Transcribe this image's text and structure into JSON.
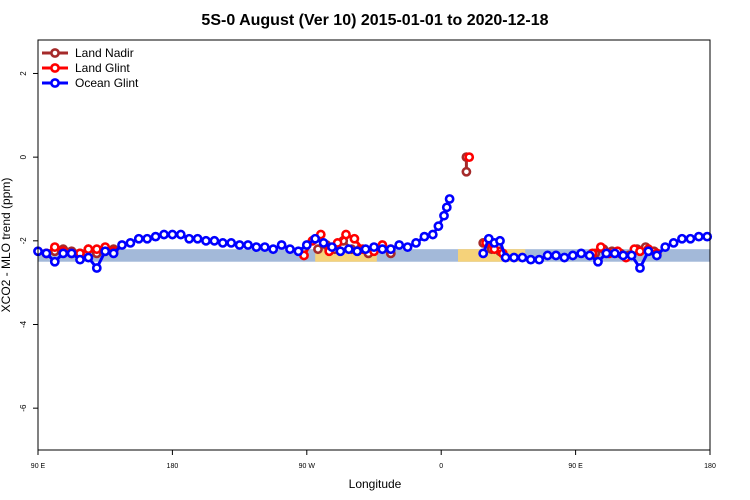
{
  "chart_data": {
    "type": "line",
    "title": "5S-0 August (Ver 10)   2015-01-01 to 2020-12-18",
    "xlabel": "Longitude",
    "ylabel": "XCO2 - MLO trend (ppm)",
    "xlim": [
      60,
      300
    ],
    "ylim": [
      -7,
      2.8
    ],
    "x_ticks": [
      {
        "value": 60,
        "label": "90 E"
      },
      {
        "value": 108,
        "label": "180"
      },
      {
        "value": 156,
        "label": "90 W"
      },
      {
        "value": 204,
        "label": "0"
      },
      {
        "value": 252,
        "label": "90 E"
      },
      {
        "value": 300,
        "label": "180"
      }
    ],
    "y_ticks": [
      {
        "value": 2,
        "label": "2"
      },
      {
        "value": 0,
        "label": "0"
      },
      {
        "value": -2,
        "label": "-2"
      },
      {
        "value": -4,
        "label": "-4"
      },
      {
        "value": -6,
        "label": "-6"
      }
    ],
    "grid": false,
    "legend_position": "top-left",
    "bands": [
      {
        "name": "ocean",
        "color": "#a3b9d9",
        "y": [
          -2.5,
          -2.2
        ],
        "x": [
          60,
          300
        ]
      },
      {
        "name": "land",
        "color": "#f5d27a",
        "y": [
          -2.5,
          -2.2
        ],
        "x": [
          159,
          181
        ]
      },
      {
        "name": "land",
        "color": "#f5d27a",
        "y": [
          -2.5,
          -2.2
        ],
        "x": [
          210,
          234
        ]
      }
    ],
    "series": [
      {
        "name": "Land Nadir",
        "color": "#a52a2a",
        "segments": [
          [
            [
              63,
              -2.3
            ],
            [
              66,
              -2.25
            ],
            [
              69,
              -2.2
            ],
            [
              72,
              -2.25
            ],
            [
              75,
              -2.3
            ]
          ],
          [
            [
              78,
              -2.2
            ],
            [
              81,
              -2.3
            ],
            [
              84,
              -2.25
            ],
            [
              87,
              -2.2
            ]
          ],
          [
            [
              160,
              -2.2
            ],
            [
              163,
              -2.1
            ],
            [
              166,
              -2.2
            ],
            [
              169,
              -2.0
            ],
            [
              172,
              -2.2
            ],
            [
              175,
              -2.2
            ],
            [
              178,
              -2.3
            ]
          ],
          [
            [
              180,
              -2.2
            ],
            [
              183,
              -2.15
            ],
            [
              186,
              -2.3
            ]
          ],
          [
            [
              213,
              -0.35
            ],
            [
              213,
              0.0
            ]
          ],
          [
            [
              219,
              -2.05
            ],
            [
              222,
              -2.2
            ],
            [
              225,
              -2.25
            ]
          ],
          [
            [
              259,
              -2.3
            ],
            [
              262,
              -2.2
            ],
            [
              265,
              -2.25
            ],
            [
              268,
              -2.3
            ],
            [
              271,
              -2.35
            ]
          ],
          [
            [
              274,
              -2.2
            ],
            [
              277,
              -2.15
            ],
            [
              280,
              -2.25
            ]
          ]
        ]
      },
      {
        "name": "Land Glint",
        "color": "#ff0000",
        "segments": [
          [
            [
              63,
              -2.3
            ],
            [
              66,
              -2.15
            ],
            [
              69,
              -2.25
            ],
            [
              72,
              -2.3
            ],
            [
              75,
              -2.3
            ]
          ],
          [
            [
              78,
              -2.2
            ],
            [
              81,
              -2.2
            ],
            [
              84,
              -2.15
            ],
            [
              87,
              -2.25
            ]
          ],
          [
            [
              155,
              -2.35
            ],
            [
              158,
              -2.0
            ],
            [
              161,
              -1.85
            ],
            [
              164,
              -2.25
            ],
            [
              167,
              -2.05
            ],
            [
              170,
              -1.85
            ],
            [
              173,
              -1.95
            ],
            [
              176,
              -2.2
            ]
          ],
          [
            [
              180,
              -2.25
            ],
            [
              183,
              -2.1
            ],
            [
              186,
              -2.2
            ]
          ],
          [
            [
              214,
              0.0
            ]
          ],
          [
            [
              220,
              -2.05
            ],
            [
              223,
              -2.2
            ],
            [
              226,
              -2.3
            ]
          ],
          [
            [
              258,
              -2.3
            ],
            [
              261,
              -2.15
            ],
            [
              264,
              -2.3
            ],
            [
              267,
              -2.25
            ],
            [
              270,
              -2.4
            ],
            [
              273,
              -2.2
            ]
          ],
          [
            [
              275,
              -2.25
            ],
            [
              278,
              -2.2
            ],
            [
              281,
              -2.3
            ]
          ]
        ]
      },
      {
        "name": "Ocean Glint",
        "color": "#0000ff",
        "segments": [
          [
            [
              60,
              -2.25
            ],
            [
              63,
              -2.3
            ],
            [
              66,
              -2.5
            ],
            [
              69,
              -2.3
            ],
            [
              72,
              -2.3
            ],
            [
              75,
              -2.45
            ],
            [
              78,
              -2.4
            ],
            [
              81,
              -2.65
            ],
            [
              84,
              -2.25
            ],
            [
              87,
              -2.3
            ],
            [
              90,
              -2.1
            ],
            [
              93,
              -2.05
            ],
            [
              96,
              -1.95
            ],
            [
              99,
              -1.95
            ],
            [
              102,
              -1.9
            ],
            [
              105,
              -1.85
            ],
            [
              108,
              -1.85
            ],
            [
              111,
              -1.85
            ],
            [
              114,
              -1.95
            ],
            [
              117,
              -1.95
            ],
            [
              120,
              -2.0
            ],
            [
              123,
              -2.0
            ],
            [
              126,
              -2.05
            ],
            [
              129,
              -2.05
            ],
            [
              132,
              -2.1
            ],
            [
              135,
              -2.1
            ],
            [
              138,
              -2.15
            ],
            [
              141,
              -2.15
            ],
            [
              144,
              -2.2
            ],
            [
              147,
              -2.1
            ],
            [
              150,
              -2.2
            ],
            [
              153,
              -2.25
            ],
            [
              156,
              -2.1
            ],
            [
              159,
              -1.95
            ],
            [
              162,
              -2.05
            ],
            [
              165,
              -2.15
            ],
            [
              168,
              -2.25
            ],
            [
              171,
              -2.2
            ],
            [
              174,
              -2.25
            ],
            [
              177,
              -2.2
            ],
            [
              180,
              -2.15
            ],
            [
              183,
              -2.2
            ],
            [
              186,
              -2.2
            ],
            [
              189,
              -2.1
            ],
            [
              192,
              -2.15
            ],
            [
              195,
              -2.05
            ],
            [
              198,
              -1.9
            ],
            [
              201,
              -1.85
            ],
            [
              203,
              -1.65
            ],
            [
              205,
              -1.4
            ],
            [
              206,
              -1.2
            ],
            [
              207,
              -1.0
            ]
          ],
          [
            [
              219,
              -2.3
            ],
            [
              221,
              -1.95
            ],
            [
              223,
              -2.05
            ],
            [
              225,
              -2.0
            ],
            [
              227,
              -2.4
            ],
            [
              230,
              -2.4
            ],
            [
              233,
              -2.4
            ],
            [
              236,
              -2.45
            ],
            [
              239,
              -2.45
            ],
            [
              242,
              -2.35
            ],
            [
              245,
              -2.35
            ],
            [
              248,
              -2.4
            ],
            [
              251,
              -2.35
            ],
            [
              254,
              -2.3
            ],
            [
              257,
              -2.35
            ],
            [
              260,
              -2.5
            ],
            [
              263,
              -2.3
            ],
            [
              266,
              -2.3
            ],
            [
              269,
              -2.35
            ],
            [
              272,
              -2.35
            ],
            [
              275,
              -2.65
            ],
            [
              278,
              -2.25
            ],
            [
              281,
              -2.35
            ],
            [
              284,
              -2.15
            ],
            [
              287,
              -2.05
            ],
            [
              290,
              -1.95
            ],
            [
              293,
              -1.95
            ],
            [
              296,
              -1.9
            ],
            [
              299,
              -1.9
            ]
          ]
        ]
      }
    ]
  }
}
